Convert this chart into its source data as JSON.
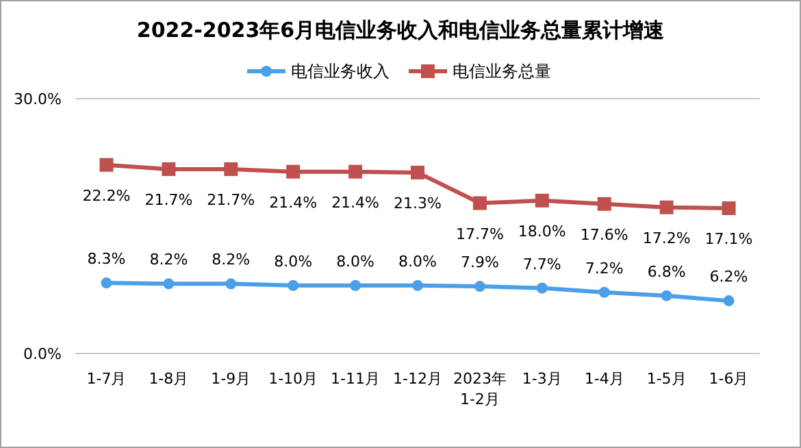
{
  "chart_data": {
    "type": "line",
    "title": "2022-2023年6月电信业务收入和电信业务总量累计增速",
    "categories": [
      "1-7月",
      "1-8月",
      "1-9月",
      "1-10月",
      "1-11月",
      "1-12月",
      "2023年1-2月",
      "1-3月",
      "1-4月",
      "1-5月",
      "1-6月"
    ],
    "series": [
      {
        "name": "电信业务收入",
        "color": "#4a9fe8",
        "marker": "circle",
        "values": [
          8.3,
          8.2,
          8.2,
          8.0,
          8.0,
          8.0,
          7.9,
          7.7,
          7.2,
          6.8,
          6.2
        ],
        "value_labels": [
          "8.3%",
          "8.2%",
          "8.2%",
          "8.0%",
          "8.0%",
          "8.0%",
          "7.9%",
          "7.7%",
          "7.2%",
          "6.8%",
          "6.2%"
        ]
      },
      {
        "name": "电信业务总量",
        "color": "#c0504d",
        "marker": "square",
        "values": [
          22.2,
          21.7,
          21.7,
          21.4,
          21.4,
          21.3,
          17.7,
          18.0,
          17.6,
          17.2,
          17.1
        ],
        "value_labels": [
          "22.2%",
          "21.7%",
          "21.7%",
          "21.4%",
          "21.4%",
          "21.3%",
          "17.7%",
          "18.0%",
          "17.6%",
          "17.2%",
          "17.1%"
        ]
      }
    ],
    "ylim": [
      0,
      30
    ],
    "yticks": [
      {
        "value": 0,
        "label": "0.0%"
      },
      {
        "value": 30,
        "label": "30.0%"
      }
    ],
    "legend": "top"
  }
}
